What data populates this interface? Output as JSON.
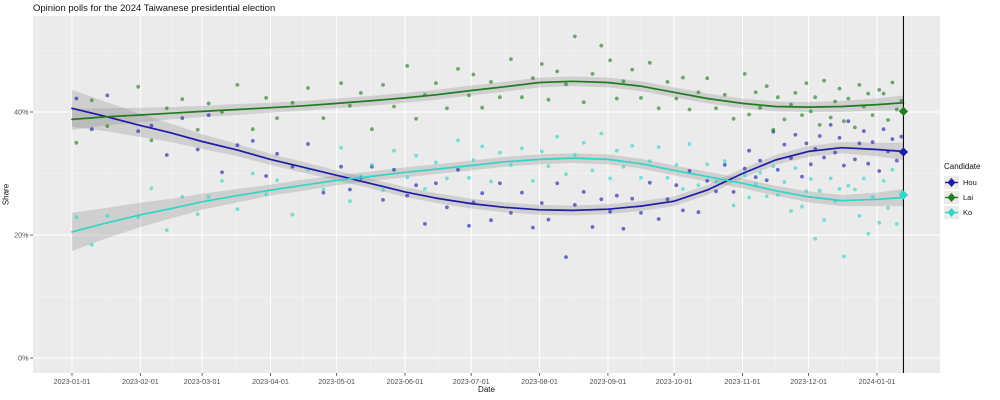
{
  "chart_data": {
    "type": "scatter",
    "title": "Opinion polls for the 2024 Taiwanese presidential election",
    "xlabel": "Date",
    "ylabel": "Share",
    "legend_title": "Candidate",
    "grid": true,
    "panel_color": "#ebebeb",
    "ci_ribbon_color": "#8f8f8f",
    "x_range_days": [
      -18,
      394
    ],
    "y_range_pct": [
      -2.4,
      55.6
    ],
    "x_ticks": [
      {
        "day": 0,
        "label": "2023-01-01"
      },
      {
        "day": 31,
        "label": "2023-02-01"
      },
      {
        "day": 59,
        "label": "2023-03-01"
      },
      {
        "day": 90,
        "label": "2023-04-01"
      },
      {
        "day": 120,
        "label": "2023-05-01"
      },
      {
        "day": 151,
        "label": "2023-06-01"
      },
      {
        "day": 181,
        "label": "2023-07-01"
      },
      {
        "day": 212,
        "label": "2023-08-01"
      },
      {
        "day": 243,
        "label": "2023-09-01"
      },
      {
        "day": 273,
        "label": "2023-10-01"
      },
      {
        "day": 304,
        "label": "2023-11-01"
      },
      {
        "day": 334,
        "label": "2023-12-01"
      },
      {
        "day": 365,
        "label": "2024-01-01"
      }
    ],
    "y_ticks": [
      {
        "pct": 0,
        "label": "0%"
      },
      {
        "pct": 20,
        "label": "20%"
      },
      {
        "pct": 40,
        "label": "40%"
      }
    ],
    "y_minor": [
      10,
      30,
      50
    ],
    "election_line_day": 377,
    "poll_days": [
      2,
      9,
      16,
      30,
      36,
      43,
      50,
      57,
      62,
      68,
      75,
      82,
      88,
      93,
      100,
      107,
      114,
      122,
      126,
      131,
      136,
      141,
      146,
      152,
      156,
      160,
      165,
      170,
      175,
      180,
      182,
      186,
      190,
      194,
      199,
      204,
      209,
      213,
      216,
      220,
      224,
      228,
      232,
      236,
      240,
      244,
      247,
      250,
      254,
      258,
      262,
      266,
      270,
      274,
      277,
      280,
      284,
      288,
      292,
      296,
      300,
      305,
      307,
      310,
      312,
      315,
      318,
      320,
      323,
      326,
      328,
      331,
      333,
      335,
      337,
      339,
      341,
      344,
      346,
      348,
      350,
      352,
      355,
      357,
      359,
      361,
      363,
      366,
      368,
      370,
      372,
      374,
      376
    ],
    "trend_days": [
      0,
      15,
      30,
      45,
      59,
      75,
      90,
      105,
      120,
      135,
      151,
      165,
      181,
      196,
      212,
      227,
      243,
      258,
      273,
      288,
      304,
      319,
      334,
      349,
      365,
      377
    ],
    "series": [
      {
        "name": "Hou",
        "color": "#1c1ca8",
        "result_share": 33.5,
        "poll_shares": [
          42.2,
          37.2,
          42.7,
          36.9,
          37.8,
          33.0,
          39.0,
          33.9,
          39.5,
          30.2,
          34.6,
          35.3,
          29.6,
          33.2,
          31.1,
          34.8,
          26.9,
          31.1,
          27.4,
          29.3,
          31.1,
          25.7,
          30.6,
          26.4,
          28.1,
          21.8,
          28.4,
          24.5,
          30.6,
          21.5,
          25.3,
          26.8,
          22.4,
          28.4,
          23.6,
          26.9,
          21.2,
          25.2,
          22.5,
          28.4,
          16.4,
          24.9,
          27.0,
          21.3,
          25.8,
          23.8,
          26.4,
          21.0,
          25.9,
          23.6,
          28.5,
          22.6,
          25.8,
          28.1,
          24.0,
          30.4,
          23.7,
          28.8,
          27.1,
          31.4,
          27.0,
          30.8,
          33.7,
          29.4,
          32.1,
          28.9,
          36.8,
          30.6,
          34.7,
          32.5,
          36.3,
          29.5,
          34.9,
          31.5,
          34.0,
          36.1,
          32.6,
          37.9,
          33.4,
          35.8,
          31.3,
          38.5,
          32.3,
          34.9,
          36.9,
          31.6,
          35.1,
          30.4,
          37.2,
          33.6,
          35.6,
          32.1,
          36.0
        ],
        "trend_shares": [
          40.6,
          39.3,
          37.9,
          36.6,
          35.2,
          33.8,
          32.3,
          31.0,
          29.7,
          28.4,
          27.0,
          26.0,
          25.1,
          24.5,
          24.1,
          24.0,
          24.2,
          24.7,
          25.5,
          27.3,
          30.0,
          32.2,
          33.6,
          34.2,
          33.9,
          33.6
        ],
        "ci_halfwidth": [
          3.0,
          2.4,
          1.9,
          1.5,
          1.2,
          1.0,
          0.9,
          0.9,
          0.8,
          0.8,
          0.8,
          0.8,
          0.8,
          0.8,
          0.8,
          0.8,
          0.8,
          0.8,
          0.8,
          0.8,
          0.8,
          0.8,
          0.9,
          0.9,
          1.1,
          1.4
        ]
      },
      {
        "name": "Lai",
        "color": "#1e7d1e",
        "result_share": 40.1,
        "poll_shares": [
          35.0,
          41.9,
          37.7,
          44.1,
          35.4,
          40.6,
          42.1,
          37.1,
          41.4,
          40.0,
          44.4,
          37.2,
          42.3,
          39.0,
          41.5,
          43.9,
          39.0,
          44.7,
          41.0,
          43.1,
          37.2,
          44.4,
          40.9,
          47.5,
          38.9,
          42.8,
          44.7,
          40.6,
          47.0,
          42.7,
          46.1,
          40.7,
          44.9,
          42.4,
          48.6,
          42.4,
          45.5,
          47.8,
          42.0,
          46.6,
          44.5,
          52.3,
          41.6,
          46.2,
          50.8,
          48.4,
          42.2,
          45.0,
          46.9,
          42.3,
          48.0,
          40.6,
          44.9,
          42.2,
          45.6,
          40.4,
          43.2,
          45.5,
          40.6,
          42.8,
          38.9,
          46.2,
          39.6,
          43.2,
          40.7,
          44.2,
          37.1,
          42.4,
          38.8,
          41.2,
          43.1,
          39.5,
          44.7,
          40.1,
          42.4,
          37.9,
          45.1,
          39.1,
          41.7,
          43.8,
          38.5,
          42.2,
          37.5,
          44.4,
          40.9,
          43.0,
          39.5,
          43.6,
          43.0,
          38.7,
          44.8,
          40.4,
          41.8
        ],
        "trend_shares": [
          38.8,
          39.2,
          39.5,
          39.8,
          40.1,
          40.4,
          40.7,
          41.0,
          41.4,
          41.8,
          42.3,
          42.8,
          43.5,
          44.1,
          44.8,
          45.0,
          44.8,
          44.2,
          43.2,
          42.2,
          41.4,
          40.9,
          40.8,
          40.9,
          41.2,
          41.5
        ],
        "ci_halfwidth": [
          1.7,
          1.4,
          1.2,
          1.0,
          0.9,
          0.9,
          0.8,
          0.8,
          0.8,
          0.8,
          0.8,
          0.8,
          0.8,
          0.8,
          0.8,
          0.8,
          0.8,
          0.8,
          0.8,
          0.8,
          0.8,
          0.8,
          0.8,
          0.9,
          1.0,
          1.2
        ]
      },
      {
        "name": "Ko",
        "color": "#30d5c8",
        "result_share": 26.5,
        "poll_shares": [
          22.9,
          18.4,
          23.1,
          22.9,
          27.6,
          20.8,
          26.2,
          23.4,
          26.2,
          28.8,
          24.2,
          30.0,
          26.6,
          28.9,
          23.3,
          30.6,
          27.4,
          34.2,
          25.5,
          29.6,
          31.4,
          27.3,
          33.7,
          29.4,
          32.9,
          27.5,
          31.8,
          29.2,
          35.4,
          29.3,
          32.2,
          34.4,
          28.7,
          33.4,
          31.4,
          34.1,
          28.8,
          33.6,
          31.2,
          36.0,
          29.9,
          33.0,
          35.0,
          30.5,
          36.5,
          29.2,
          33.7,
          31.1,
          34.5,
          29.3,
          32.0,
          34.3,
          29.3,
          31.4,
          27.5,
          34.8,
          28.1,
          31.5,
          28.7,
          32.0,
          24.8,
          29.7,
          26.1,
          28.3,
          30.1,
          26.3,
          31.2,
          26.5,
          28.6,
          23.9,
          30.9,
          24.6,
          27.1,
          29.1,
          19.4,
          27.2,
          22.4,
          29.2,
          25.5,
          27.5,
          16.5,
          28.0,
          27.4,
          23.1,
          29.2,
          20.2,
          26.2,
          22.0,
          28.8,
          24.4,
          30.6,
          21.8,
          26.9
        ],
        "trend_shares": [
          20.5,
          21.9,
          23.2,
          24.3,
          25.4,
          26.4,
          27.3,
          28.1,
          28.9,
          29.5,
          30.2,
          30.7,
          31.3,
          31.9,
          32.3,
          32.5,
          32.3,
          31.6,
          30.5,
          29.5,
          28.4,
          27.2,
          26.2,
          25.6,
          25.8,
          26.1
        ],
        "ci_halfwidth": [
          3.1,
          2.5,
          2.0,
          1.6,
          1.3,
          1.1,
          0.9,
          0.9,
          0.8,
          0.8,
          0.8,
          0.8,
          0.8,
          0.8,
          0.8,
          0.8,
          0.8,
          0.8,
          0.8,
          0.8,
          0.8,
          0.8,
          0.9,
          0.9,
          1.1,
          1.4
        ]
      }
    ]
  }
}
